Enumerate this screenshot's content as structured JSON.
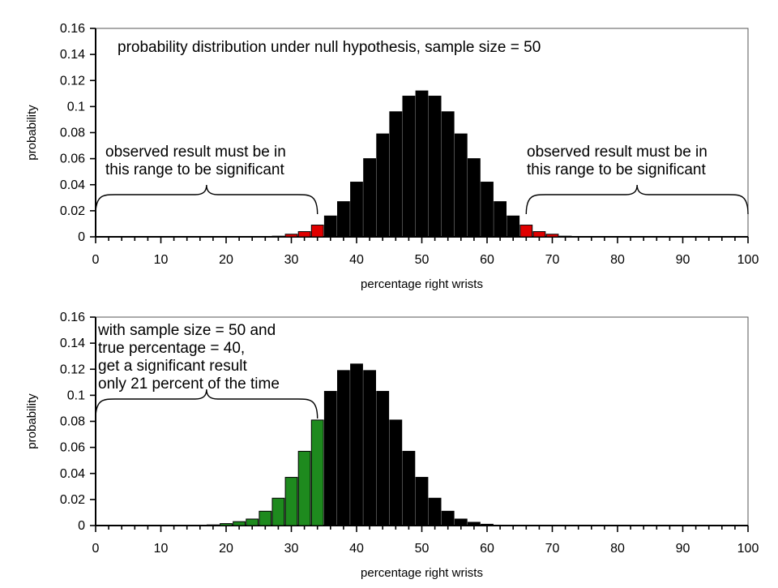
{
  "chart_data": [
    {
      "type": "bar",
      "title": "",
      "xlabel": "percentage right wrists",
      "ylabel": "probability",
      "xlim": [
        0,
        100
      ],
      "ylim": [
        0,
        0.16
      ],
      "xticks": [
        "0",
        "10",
        "20",
        "30",
        "40",
        "50",
        "60",
        "70",
        "80",
        "90",
        "100"
      ],
      "yticks": [
        "0",
        "0.02",
        "0.04",
        "0.06",
        "0.08",
        "0.1",
        "0.12",
        "0.14",
        "0.16"
      ],
      "grid": false,
      "bar_colors": {
        "default": "#000000",
        "highlight": "#e00000"
      },
      "highlight_rule": "x <= 34 or x >= 66",
      "x": [
        0,
        2,
        4,
        6,
        8,
        10,
        12,
        14,
        16,
        18,
        20,
        22,
        24,
        26,
        28,
        30,
        32,
        34,
        36,
        38,
        40,
        42,
        44,
        46,
        48,
        50,
        52,
        54,
        56,
        58,
        60,
        62,
        64,
        66,
        68,
        70,
        72,
        74,
        76,
        78,
        80,
        82,
        84,
        86,
        88,
        90,
        92,
        94,
        96,
        98,
        100
      ],
      "values": [
        0,
        0,
        0,
        0,
        0,
        0,
        0,
        0,
        0,
        0,
        0,
        0,
        0,
        0,
        0.0005,
        0.002,
        0.004,
        0.009,
        0.016,
        0.027,
        0.042,
        0.06,
        0.079,
        0.096,
        0.108,
        0.112,
        0.108,
        0.096,
        0.079,
        0.06,
        0.042,
        0.027,
        0.016,
        0.009,
        0.004,
        0.002,
        0.0005,
        0,
        0,
        0,
        0,
        0,
        0,
        0,
        0,
        0,
        0,
        0,
        0,
        0,
        0
      ],
      "annotations": [
        {
          "text": "probability distribution under null hypothesis, sample size = 50"
        },
        {
          "text": "observed result must be in\nthis range to be significant",
          "range": [
            0,
            34
          ]
        },
        {
          "text": "observed result must be in\nthis range to be significant",
          "range": [
            66,
            100
          ]
        }
      ]
    },
    {
      "type": "bar",
      "title": "",
      "xlabel": "percentage right wrists",
      "ylabel": "probability",
      "xlim": [
        0,
        100
      ],
      "ylim": [
        0,
        0.16
      ],
      "xticks": [
        "0",
        "10",
        "20",
        "30",
        "40",
        "50",
        "60",
        "70",
        "80",
        "90",
        "100"
      ],
      "yticks": [
        "0",
        "0.02",
        "0.04",
        "0.06",
        "0.08",
        "0.1",
        "0.12",
        "0.14",
        "0.16"
      ],
      "grid": false,
      "bar_colors": {
        "default": "#000000",
        "highlight": "#1e8a1e"
      },
      "highlight_rule": "x <= 34",
      "x": [
        0,
        2,
        4,
        6,
        8,
        10,
        12,
        14,
        16,
        18,
        20,
        22,
        24,
        26,
        28,
        30,
        32,
        34,
        36,
        38,
        40,
        42,
        44,
        46,
        48,
        50,
        52,
        54,
        56,
        58,
        60,
        62,
        64,
        66,
        68,
        70,
        72,
        74,
        76,
        78,
        80,
        82,
        84,
        86,
        88,
        90,
        92,
        94,
        96,
        98,
        100
      ],
      "values": [
        0,
        0,
        0,
        0,
        0,
        0,
        0,
        0,
        0,
        0.0005,
        0.0015,
        0.003,
        0.005,
        0.011,
        0.021,
        0.037,
        0.057,
        0.081,
        0.103,
        0.119,
        0.124,
        0.119,
        0.103,
        0.081,
        0.057,
        0.037,
        0.021,
        0.011,
        0.005,
        0.0025,
        0.001,
        0,
        0,
        0,
        0,
        0,
        0,
        0,
        0,
        0,
        0,
        0,
        0,
        0,
        0,
        0,
        0,
        0,
        0,
        0,
        0
      ],
      "annotations": [
        {
          "text": "with sample size = 50 and\ntrue percentage = 40,\nget a significant result\nonly 21 percent of the time",
          "range": [
            0,
            34
          ]
        }
      ]
    }
  ]
}
